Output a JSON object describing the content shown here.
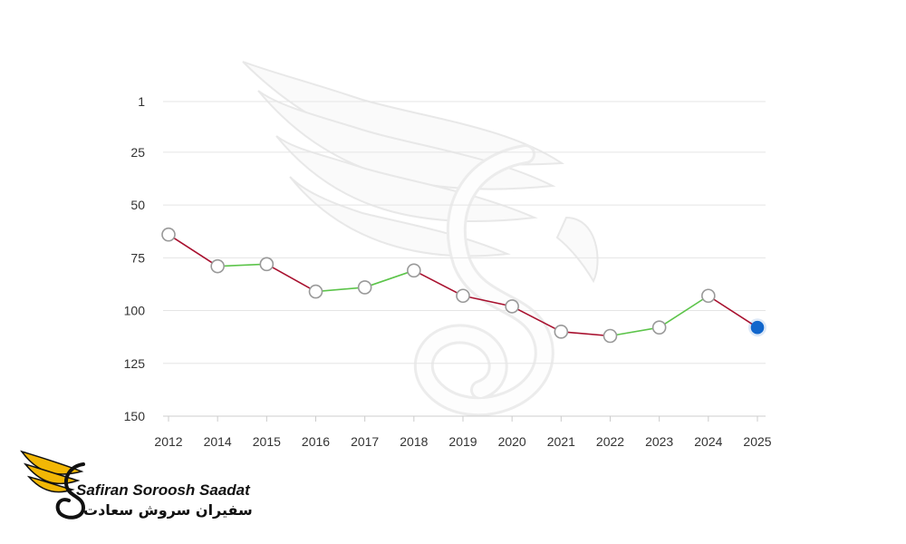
{
  "chart_data": {
    "type": "line",
    "categories": [
      "2012",
      "2014",
      "2015",
      "2016",
      "2017",
      "2018",
      "2019",
      "2020",
      "2021",
      "2022",
      "2023",
      "2024",
      "2025"
    ],
    "values": [
      64,
      79,
      78,
      91,
      89,
      81,
      93,
      98,
      110,
      112,
      108,
      93,
      108
    ],
    "y_ticks": [
      1,
      25,
      50,
      75,
      100,
      125,
      150
    ],
    "ylim": [
      1,
      150
    ],
    "y_reversed": true,
    "grid": true,
    "colors": {
      "rank_improved": "#5cc44a",
      "rank_declined": "#a8102e",
      "latest_point": "#1166cc",
      "marker_fill": "#ffffff",
      "marker_stroke": "#999999",
      "grid": "#e5e5e5",
      "axis": "#cccccc"
    }
  },
  "watermark": {
    "icon": "bird-wing-s-logo-icon"
  },
  "brand": {
    "icon": "golden-wing-s-logo-icon",
    "name_en": "Safiran Soroosh Saadat",
    "name_fa": "سفیران سروش سعادت"
  }
}
